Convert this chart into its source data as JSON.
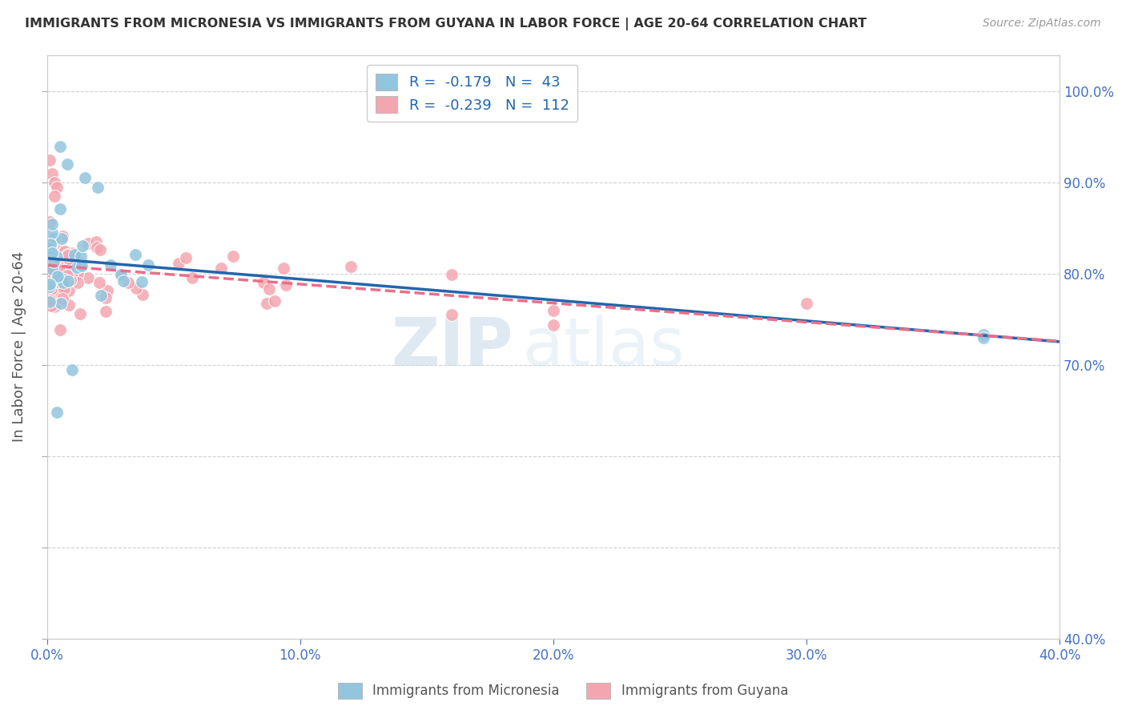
{
  "title": "IMMIGRANTS FROM MICRONESIA VS IMMIGRANTS FROM GUYANA IN LABOR FORCE | AGE 20-64 CORRELATION CHART",
  "source": "Source: ZipAtlas.com",
  "ylabel": "In Labor Force | Age 20-64",
  "xlim": [
    0.0,
    0.4
  ],
  "ylim": [
    0.4,
    1.04
  ],
  "xtick_values": [
    0.0,
    0.1,
    0.2,
    0.3,
    0.4
  ],
  "right_ytick_values": [
    1.0,
    0.9,
    0.8,
    0.7,
    0.4
  ],
  "micronesia_color": "#92c5de",
  "guyana_color": "#f4a6b0",
  "micronesia_R": -0.179,
  "micronesia_N": 43,
  "guyana_R": -0.239,
  "guyana_N": 112,
  "micronesia_line_color": "#2166ac",
  "guyana_line_color": "#e8708a",
  "watermark_zip": "ZIP",
  "watermark_atlas": "atlas",
  "mic_scatter_x": [
    0.001,
    0.002,
    0.003,
    0.003,
    0.004,
    0.004,
    0.005,
    0.005,
    0.005,
    0.006,
    0.006,
    0.007,
    0.007,
    0.008,
    0.008,
    0.009,
    0.009,
    0.01,
    0.01,
    0.011,
    0.011,
    0.012,
    0.013,
    0.013,
    0.014,
    0.015,
    0.016,
    0.017,
    0.018,
    0.02,
    0.022,
    0.024,
    0.026,
    0.028,
    0.03,
    0.032,
    0.035,
    0.038,
    0.04,
    0.37,
    0.005,
    0.01,
    0.025
  ],
  "mic_scatter_y": [
    0.8,
    0.82,
    0.84,
    0.86,
    0.81,
    0.83,
    0.8,
    0.82,
    0.79,
    0.81,
    0.84,
    0.8,
    0.82,
    0.81,
    0.83,
    0.8,
    0.79,
    0.82,
    0.81,
    0.8,
    0.83,
    0.81,
    0.8,
    0.82,
    0.81,
    0.8,
    0.79,
    0.81,
    0.8,
    0.79,
    0.78,
    0.8,
    0.79,
    0.78,
    0.79,
    0.77,
    0.76,
    0.77,
    0.86,
    0.73,
    0.65,
    0.7,
    0.82
  ],
  "guy_scatter_x": [
    0.001,
    0.001,
    0.002,
    0.002,
    0.003,
    0.003,
    0.003,
    0.004,
    0.004,
    0.004,
    0.004,
    0.005,
    0.005,
    0.005,
    0.005,
    0.005,
    0.006,
    0.006,
    0.006,
    0.006,
    0.007,
    0.007,
    0.007,
    0.007,
    0.008,
    0.008,
    0.008,
    0.008,
    0.009,
    0.009,
    0.009,
    0.01,
    0.01,
    0.01,
    0.01,
    0.011,
    0.011,
    0.011,
    0.012,
    0.012,
    0.012,
    0.013,
    0.013,
    0.013,
    0.014,
    0.014,
    0.015,
    0.015,
    0.015,
    0.016,
    0.016,
    0.017,
    0.017,
    0.018,
    0.018,
    0.019,
    0.019,
    0.02,
    0.02,
    0.021,
    0.022,
    0.023,
    0.024,
    0.025,
    0.026,
    0.027,
    0.028,
    0.03,
    0.032,
    0.035,
    0.038,
    0.04,
    0.045,
    0.05,
    0.055,
    0.06,
    0.065,
    0.07,
    0.075,
    0.08,
    0.09,
    0.095,
    0.1,
    0.11,
    0.12,
    0.13,
    0.14,
    0.15,
    0.16,
    0.17,
    0.18,
    0.2,
    0.22,
    0.24,
    0.26,
    0.28,
    0.3,
    0.002,
    0.003,
    0.004,
    0.005,
    0.006,
    0.007,
    0.008,
    0.009,
    0.01,
    0.012,
    0.015,
    0.02,
    0.025
  ],
  "guy_scatter_y": [
    0.82,
    0.84,
    0.8,
    0.85,
    0.81,
    0.83,
    0.86,
    0.82,
    0.84,
    0.8,
    0.86,
    0.82,
    0.84,
    0.8,
    0.81,
    0.83,
    0.82,
    0.84,
    0.8,
    0.81,
    0.82,
    0.84,
    0.8,
    0.81,
    0.82,
    0.84,
    0.8,
    0.81,
    0.82,
    0.84,
    0.8,
    0.82,
    0.81,
    0.8,
    0.83,
    0.82,
    0.81,
    0.8,
    0.82,
    0.81,
    0.8,
    0.82,
    0.81,
    0.8,
    0.81,
    0.8,
    0.81,
    0.8,
    0.79,
    0.81,
    0.8,
    0.81,
    0.8,
    0.79,
    0.81,
    0.8,
    0.79,
    0.8,
    0.79,
    0.8,
    0.79,
    0.8,
    0.79,
    0.8,
    0.79,
    0.79,
    0.78,
    0.79,
    0.78,
    0.79,
    0.78,
    0.79,
    0.78,
    0.79,
    0.78,
    0.79,
    0.78,
    0.79,
    0.78,
    0.79,
    0.78,
    0.77,
    0.78,
    0.77,
    0.76,
    0.77,
    0.76,
    0.77,
    0.76,
    0.77,
    0.76,
    0.75,
    0.76,
    0.75,
    0.76,
    0.75,
    0.76,
    0.9,
    0.895,
    0.88,
    0.875,
    0.87,
    0.865,
    0.87,
    0.865,
    0.86,
    0.855,
    0.85,
    0.84,
    0.81
  ],
  "legend_label_mic": "R =  -0.179   N =  43",
  "legend_label_guy": "R =  -0.239   N =  112"
}
